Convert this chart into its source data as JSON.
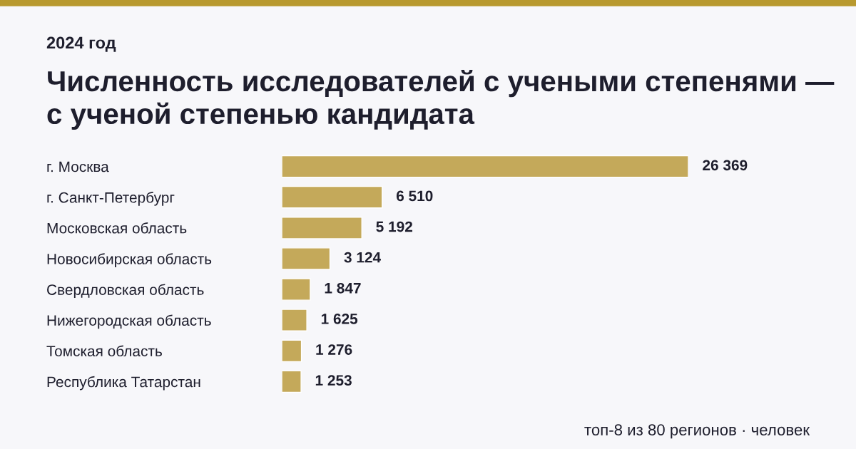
{
  "chart_data": {
    "type": "bar",
    "orientation": "horizontal",
    "title": "Численность исследователей с учеными степенями — с ученой степенью кандидата",
    "subtitle": "2024 год",
    "categories": [
      "г. Москва",
      "г. Санкт-Петербург",
      "Московская область",
      "Новосибирская область",
      "Свердловская область",
      "Нижегородская область",
      "Томская область",
      "Республика Татарстан"
    ],
    "values": [
      26369,
      6510,
      5192,
      3124,
      1847,
      1625,
      1276,
      1253
    ],
    "value_labels": [
      "26 369",
      "6 510",
      "5 192",
      "3 124",
      "1 847",
      "1 625",
      "1 276",
      "1 253"
    ],
    "color": "#c4a95a",
    "annotations": [
      "топ-8 из 80 регионов · человек"
    ],
    "grid": false,
    "legend": false
  }
}
